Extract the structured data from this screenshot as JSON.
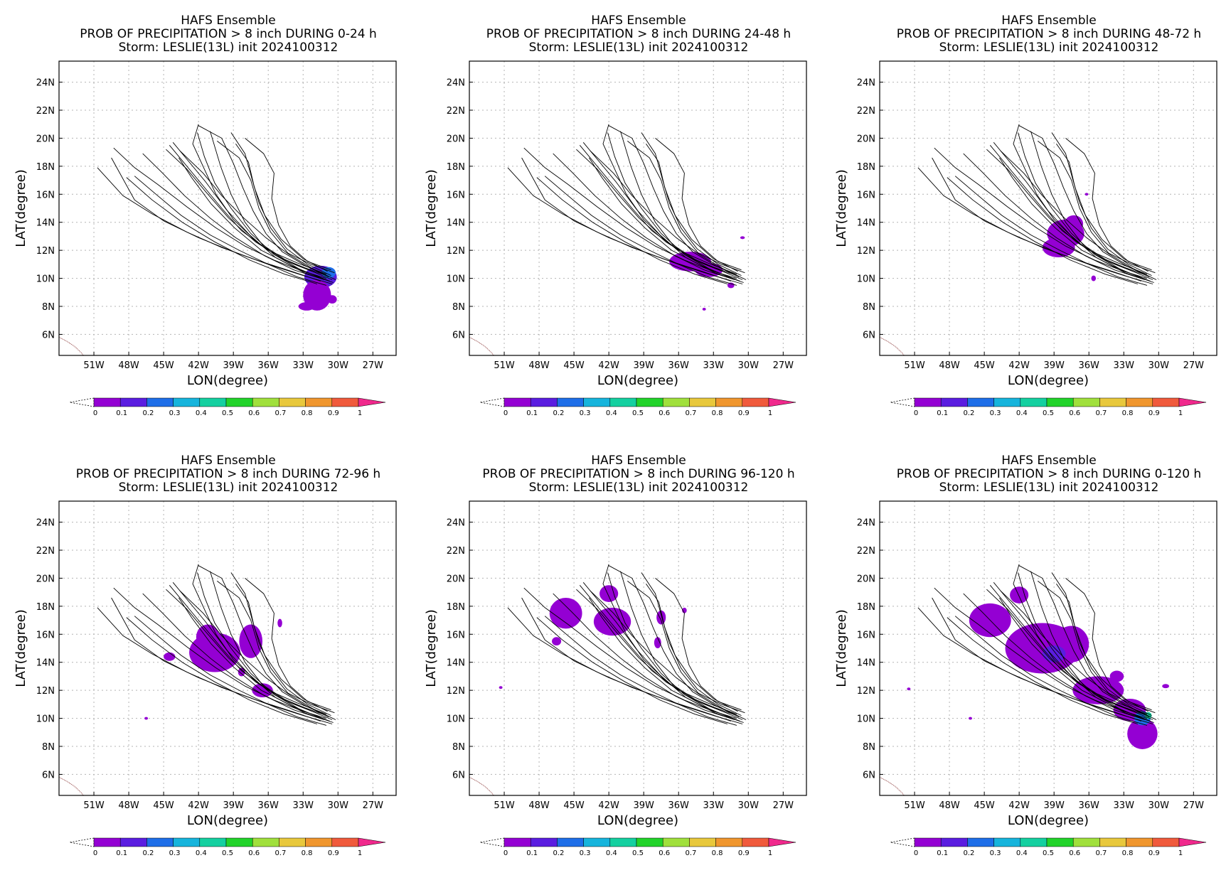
{
  "panel_common": {
    "title1": "HAFS Ensemble",
    "storm": "Storm: LESLIE(13L) init 2024100312",
    "xlabel": "LON(degree)",
    "ylabel": "LAT(degree)",
    "x_ticks": [
      "51W",
      "48W",
      "45W",
      "42W",
      "39W",
      "36W",
      "33W",
      "30W",
      "27W"
    ],
    "y_ticks": [
      "24N",
      "22N",
      "20N",
      "18N",
      "16N",
      "14N",
      "12N",
      "10N",
      "8N",
      "6N"
    ],
    "colorbar_labels": [
      "0",
      "0.1",
      "0.2",
      "0.3",
      "0.4",
      "0.5",
      "0.6",
      "0.7",
      "0.8",
      "0.9",
      "1"
    ],
    "colorbar_colors": [
      "#9400d3",
      "#5a1de0",
      "#1e6ee8",
      "#16b4dc",
      "#14d0a0",
      "#22d32a",
      "#a0e03c",
      "#e8c83c",
      "#f0962e",
      "#f05a3c"
    ],
    "overflow_color": "#f0288c",
    "track_color": "#000000",
    "coast_color": "#8b3a3a"
  },
  "panels": [
    {
      "title2": "PROB OF PRECIPITATION > 8 inch DURING  0-24 h"
    },
    {
      "title2": "PROB OF PRECIPITATION > 8 inch DURING 24-48 h"
    },
    {
      "title2": "PROB OF PRECIPITATION > 8 inch DURING 48-72 h"
    },
    {
      "title2": "PROB OF PRECIPITATION > 8 inch DURING 72-96 h"
    },
    {
      "title2": "PROB OF PRECIPITATION > 8 inch DURING 96-120 h"
    },
    {
      "title2": "PROB OF PRECIPITATION > 8 inch DURING 0-120 h"
    }
  ],
  "chart_data": {
    "type": "heatmap",
    "x_range": [
      -54,
      -25
    ],
    "y_range": [
      4.5,
      25.5
    ],
    "x_unit": "degrees longitude",
    "y_unit": "degrees latitude",
    "tracks": [
      [
        [
          -31,
          10.2
        ],
        [
          -33,
          10.8
        ],
        [
          -35,
          11.5
        ],
        [
          -37,
          12.6
        ],
        [
          -39,
          14.2
        ],
        [
          -40.5,
          16
        ],
        [
          -41.5,
          17.8
        ],
        [
          -42.5,
          19.6
        ],
        [
          -42,
          21
        ]
      ],
      [
        [
          -30.5,
          9.9
        ],
        [
          -32.5,
          10.6
        ],
        [
          -34.5,
          11.3
        ],
        [
          -36.5,
          12.4
        ],
        [
          -38,
          14
        ],
        [
          -39.2,
          16
        ],
        [
          -40.1,
          18
        ],
        [
          -41,
          20.5
        ]
      ],
      [
        [
          -31,
          10
        ],
        [
          -33,
          10.5
        ],
        [
          -35.5,
          11.3
        ],
        [
          -38,
          12.3
        ],
        [
          -40.5,
          13.6
        ],
        [
          -43,
          15.1
        ],
        [
          -45.5,
          16.7
        ],
        [
          -47.5,
          17.9
        ],
        [
          -49.3,
          19.3
        ]
      ],
      [
        [
          -31.5,
          9.8
        ],
        [
          -34,
          10.5
        ],
        [
          -37,
          11.3
        ],
        [
          -40,
          12.2
        ],
        [
          -43,
          13.3
        ],
        [
          -46,
          14.6
        ],
        [
          -48.5,
          15.9
        ],
        [
          -50.7,
          17.9
        ]
      ],
      [
        [
          -30.5,
          9.6
        ],
        [
          -33,
          10.2
        ],
        [
          -36,
          11
        ],
        [
          -39,
          11.9
        ],
        [
          -42,
          12.9
        ],
        [
          -45,
          14.1
        ],
        [
          -47.5,
          15.6
        ],
        [
          -49.5,
          18.6
        ]
      ],
      [
        [
          -31,
          10.3
        ],
        [
          -33.5,
          11.1
        ],
        [
          -36,
          12
        ],
        [
          -38.3,
          13.4
        ],
        [
          -40,
          15
        ],
        [
          -41.6,
          16.6
        ],
        [
          -43,
          18
        ],
        [
          -44.5,
          19.5
        ]
      ],
      [
        [
          -30.8,
          10.1
        ],
        [
          -32.8,
          10.9
        ],
        [
          -34.8,
          11.9
        ],
        [
          -36.2,
          13.2
        ],
        [
          -37.3,
          14.8
        ],
        [
          -38.2,
          16.5
        ],
        [
          -39,
          18.2
        ],
        [
          -40,
          20
        ],
        [
          -42,
          20.9
        ]
      ],
      [
        [
          -30.3,
          10.4
        ],
        [
          -32.3,
          11
        ],
        [
          -34.3,
          11.8
        ],
        [
          -35.8,
          13.3
        ],
        [
          -36.8,
          15
        ],
        [
          -37.5,
          17
        ],
        [
          -38.5,
          18.6
        ],
        [
          -40.4,
          19.8
        ]
      ],
      [
        [
          -30.6,
          10.6
        ],
        [
          -32.6,
          11.2
        ],
        [
          -34.1,
          12.3
        ],
        [
          -35.1,
          13.8
        ],
        [
          -35.7,
          15.7
        ],
        [
          -35.5,
          17.5
        ],
        [
          -36.4,
          18.9
        ],
        [
          -38,
          20
        ]
      ],
      [
        [
          -31.2,
          9.9
        ],
        [
          -33.8,
          10.6
        ],
        [
          -36.3,
          11.6
        ],
        [
          -38.8,
          12.9
        ],
        [
          -41,
          14.3
        ],
        [
          -43.2,
          15.9
        ],
        [
          -45.2,
          17.6
        ],
        [
          -46.8,
          18.9
        ]
      ],
      [
        [
          -30.4,
          9.7
        ],
        [
          -32.9,
          10.4
        ],
        [
          -35.4,
          11.5
        ],
        [
          -37.6,
          13.1
        ],
        [
          -39.6,
          14.9
        ],
        [
          -41.4,
          16.9
        ],
        [
          -43,
          18.5
        ],
        [
          -44.2,
          19.7
        ]
      ],
      [
        [
          -31.4,
          10
        ],
        [
          -34,
          10.9
        ],
        [
          -36.6,
          12
        ],
        [
          -38.9,
          13.6
        ],
        [
          -40.9,
          15.3
        ],
        [
          -42.6,
          17.2
        ],
        [
          -43.7,
          18.6
        ]
      ],
      [
        [
          -30.9,
          10.5
        ],
        [
          -33,
          11.4
        ],
        [
          -34.9,
          12.8
        ],
        [
          -36.3,
          14.5
        ],
        [
          -37.2,
          16.5
        ],
        [
          -37.7,
          18.3
        ],
        [
          -38.8,
          19.6
        ]
      ],
      [
        [
          -31,
          9.5
        ],
        [
          -33.5,
          10.1
        ],
        [
          -36,
          11
        ],
        [
          -38.5,
          12
        ],
        [
          -41,
          13.1
        ],
        [
          -43.5,
          14.5
        ],
        [
          -45.8,
          16.1
        ],
        [
          -47.5,
          17.3
        ]
      ],
      [
        [
          -30.7,
          9.8
        ],
        [
          -33.2,
          10.6
        ],
        [
          -35.5,
          11.7
        ],
        [
          -37.5,
          13.2
        ],
        [
          -39.2,
          15
        ],
        [
          -40.6,
          16.8
        ],
        [
          -41.5,
          18.7
        ],
        [
          -42.1,
          20.4
        ]
      ],
      [
        [
          -31.6,
          10.3
        ],
        [
          -34.4,
          11.2
        ],
        [
          -37.1,
          12.6
        ],
        [
          -39.4,
          14.3
        ],
        [
          -41.3,
          16.1
        ],
        [
          -43,
          17.8
        ],
        [
          -44.8,
          19.2
        ]
      ],
      [
        [
          -30.2,
          9.9
        ],
        [
          -32.2,
          10.7
        ],
        [
          -34.2,
          11.7
        ],
        [
          -36.2,
          12.9
        ],
        [
          -38.1,
          14.3
        ],
        [
          -40,
          15.9
        ],
        [
          -41.6,
          17.5
        ],
        [
          -43.6,
          19.1
        ]
      ],
      [
        [
          -31.8,
          9.6
        ],
        [
          -34.6,
          10.3
        ],
        [
          -37.6,
          11.3
        ],
        [
          -40.6,
          12.6
        ],
        [
          -43.4,
          14
        ],
        [
          -46,
          15.6
        ],
        [
          -48.2,
          17.2
        ]
      ],
      [
        [
          -30.6,
          10.2
        ],
        [
          -32.6,
          11
        ],
        [
          -34.4,
          12.1
        ],
        [
          -35.8,
          13.6
        ],
        [
          -36.8,
          15.4
        ],
        [
          -37.4,
          17.1
        ],
        [
          -38,
          18.9
        ],
        [
          -39.2,
          20.4
        ]
      ]
    ],
    "coast": [
      [
        -54,
        5.8
      ],
      [
        -53.3,
        5.5
      ],
      [
        -52.6,
        5.1
      ],
      [
        -52.1,
        4.7
      ],
      [
        -51.9,
        4.5
      ]
    ],
    "precip_blobs": [
      [
        {
          "lon": -31.5,
          "lat": 10.1,
          "rx": 1.4,
          "ry": 0.8,
          "p": 0.1
        },
        {
          "lon": -30.8,
          "lat": 10.4,
          "rx": 0.6,
          "ry": 0.4,
          "p": 0.2
        },
        {
          "lon": -31.8,
          "lat": 8.8,
          "rx": 1.2,
          "ry": 1.1,
          "p": 0
        },
        {
          "lon": -32.7,
          "lat": 8.0,
          "rx": 0.7,
          "ry": 0.3,
          "p": 0
        },
        {
          "lon": -30.5,
          "lat": 8.5,
          "rx": 0.4,
          "ry": 0.3,
          "p": 0
        }
      ],
      [
        {
          "lon": -35.0,
          "lat": 11.2,
          "rx": 1.8,
          "ry": 0.7,
          "p": 0
        },
        {
          "lon": -33.4,
          "lat": 10.6,
          "rx": 1.2,
          "ry": 0.5,
          "p": 0
        },
        {
          "lon": -30.5,
          "lat": 12.9,
          "rx": 0.2,
          "ry": 0.1,
          "p": 0
        },
        {
          "lon": -33.8,
          "lat": 7.8,
          "rx": 0.15,
          "ry": 0.1,
          "p": 0
        },
        {
          "lon": -31.5,
          "lat": 9.5,
          "rx": 0.3,
          "ry": 0.2,
          "p": 0
        }
      ],
      [
        {
          "lon": -38.0,
          "lat": 13.2,
          "rx": 1.6,
          "ry": 1.0,
          "p": 0
        },
        {
          "lon": -38.6,
          "lat": 12.2,
          "rx": 1.4,
          "ry": 0.7,
          "p": 0
        },
        {
          "lon": -37.3,
          "lat": 13.9,
          "rx": 0.8,
          "ry": 0.6,
          "p": 0
        },
        {
          "lon": -36.2,
          "lat": 16.0,
          "rx": 0.15,
          "ry": 0.1,
          "p": 0
        },
        {
          "lon": -35.6,
          "lat": 10.0,
          "rx": 0.2,
          "ry": 0.2,
          "p": 0
        }
      ],
      [
        {
          "lon": -40.6,
          "lat": 14.7,
          "rx": 2.2,
          "ry": 1.4,
          "p": 0
        },
        {
          "lon": -41.2,
          "lat": 15.8,
          "rx": 1.0,
          "ry": 0.9,
          "p": 0
        },
        {
          "lon": -37.5,
          "lat": 15.5,
          "rx": 1.0,
          "ry": 1.2,
          "p": 0
        },
        {
          "lon": -36.5,
          "lat": 12.0,
          "rx": 0.9,
          "ry": 0.5,
          "p": 0
        },
        {
          "lon": -44.5,
          "lat": 14.4,
          "rx": 0.5,
          "ry": 0.3,
          "p": 0
        },
        {
          "lon": -35.0,
          "lat": 16.8,
          "rx": 0.2,
          "ry": 0.3,
          "p": 0
        },
        {
          "lon": -46.5,
          "lat": 10.0,
          "rx": 0.15,
          "ry": 0.1,
          "p": 0
        },
        {
          "lon": -38.3,
          "lat": 13.3,
          "rx": 0.3,
          "ry": 0.3,
          "p": 0
        }
      ],
      [
        {
          "lon": -45.7,
          "lat": 17.5,
          "rx": 1.4,
          "ry": 1.1,
          "p": 0
        },
        {
          "lon": -41.7,
          "lat": 16.9,
          "rx": 1.6,
          "ry": 1.0,
          "p": 0
        },
        {
          "lon": -42.0,
          "lat": 18.9,
          "rx": 0.8,
          "ry": 0.6,
          "p": 0
        },
        {
          "lon": -37.5,
          "lat": 17.2,
          "rx": 0.4,
          "ry": 0.5,
          "p": 0
        },
        {
          "lon": -37.8,
          "lat": 15.4,
          "rx": 0.3,
          "ry": 0.4,
          "p": 0
        },
        {
          "lon": -35.5,
          "lat": 17.7,
          "rx": 0.2,
          "ry": 0.2,
          "p": 0
        },
        {
          "lon": -46.5,
          "lat": 15.5,
          "rx": 0.4,
          "ry": 0.3,
          "p": 0
        },
        {
          "lon": -51.3,
          "lat": 12.2,
          "rx": 0.15,
          "ry": 0.1,
          "p": 0
        }
      ],
      [
        {
          "lon": -40.0,
          "lat": 15.0,
          "rx": 3.2,
          "ry": 1.8,
          "p": 0
        },
        {
          "lon": -44.5,
          "lat": 17.0,
          "rx": 1.8,
          "ry": 1.2,
          "p": 0
        },
        {
          "lon": -37.5,
          "lat": 15.3,
          "rx": 1.5,
          "ry": 1.3,
          "p": 0
        },
        {
          "lon": -35.2,
          "lat": 12.0,
          "rx": 2.2,
          "ry": 1.0,
          "p": 0
        },
        {
          "lon": -32.5,
          "lat": 10.6,
          "rx": 1.4,
          "ry": 0.8,
          "p": 0
        },
        {
          "lon": -31.4,
          "lat": 8.9,
          "rx": 1.3,
          "ry": 1.1,
          "p": 0
        },
        {
          "lon": -42.0,
          "lat": 18.8,
          "rx": 0.8,
          "ry": 0.6,
          "p": 0
        },
        {
          "lon": -39.0,
          "lat": 14.6,
          "rx": 1.0,
          "ry": 0.6,
          "p": 0.1
        },
        {
          "lon": -31.4,
          "lat": 10.0,
          "rx": 0.7,
          "ry": 0.5,
          "p": 0.2
        },
        {
          "lon": -30.9,
          "lat": 10.2,
          "rx": 0.3,
          "ry": 0.25,
          "p": 0.4
        },
        {
          "lon": -51.5,
          "lat": 12.1,
          "rx": 0.15,
          "ry": 0.1,
          "p": 0
        },
        {
          "lon": -46.2,
          "lat": 10.0,
          "rx": 0.15,
          "ry": 0.1,
          "p": 0
        },
        {
          "lon": -29.4,
          "lat": 12.3,
          "rx": 0.3,
          "ry": 0.15,
          "p": 0
        },
        {
          "lon": -33.6,
          "lat": 13.0,
          "rx": 0.6,
          "ry": 0.4,
          "p": 0
        }
      ]
    ]
  }
}
